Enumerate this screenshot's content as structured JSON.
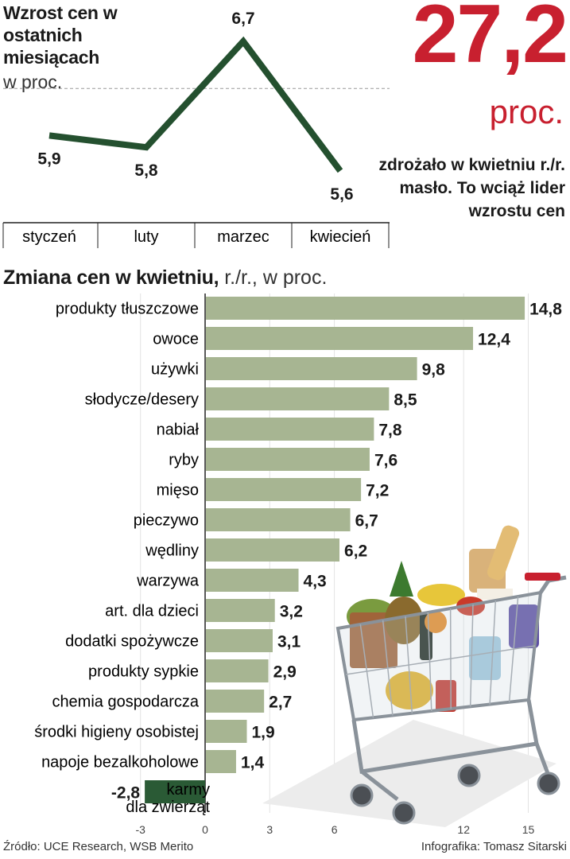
{
  "line_panel": {
    "title": "Wzrost cen w ostatnich miesiącach",
    "unit": "w proc."
  },
  "headline": {
    "number": "27,2",
    "unit": "proc.",
    "text": "zdrożało w kwietniu r./r. masło. To wciąż lider wzrostu cen"
  },
  "bar_panel": {
    "title": "Zmiana cen w kwietniu,",
    "subtitle": "r./r., w proc."
  },
  "footer": {
    "source": "Źródło: UCE Research, WSB Merito",
    "credit": "Infografika: Tomasz Sitarski"
  },
  "colors": {
    "headline_red": "#c8202f",
    "line_green": "#24502f",
    "bar_sage": "#a7b592",
    "bar_negative": "#2a5a35"
  },
  "illustration": "shopping-cart-with-groceries",
  "chart_data": [
    {
      "type": "line",
      "categories": [
        "styczeń",
        "luty",
        "marzec",
        "kwiecień"
      ],
      "series": [
        {
          "values": [
            5.9,
            5.8,
            6.7,
            5.6
          ],
          "labels": [
            "5,9",
            "5,8",
            "6,7",
            "5,6"
          ]
        }
      ],
      "title": "Wzrost cen w ostatnich miesiącach",
      "ylabel": "w proc.",
      "reference_line": 6.3,
      "grid": false
    },
    {
      "type": "bar",
      "orientation": "horizontal",
      "title": "Zmiana cen w kwietniu, r./r., w proc.",
      "categories": [
        "produkty tłuszczowe",
        "owoce",
        "używki",
        "słodycze/desery",
        "nabiał",
        "ryby",
        "mięso",
        "pieczywo",
        "wędliny",
        "warzywa",
        "art. dla dzieci",
        "dodatki spożywcze",
        "produkty sypkie",
        "chemia gospodarcza",
        "środki higieny osobistej",
        "napoje bezalkoholowe",
        "karmy dla zwierząt"
      ],
      "values": [
        14.8,
        12.4,
        9.8,
        8.5,
        7.8,
        7.6,
        7.2,
        6.7,
        6.2,
        4.3,
        3.2,
        3.1,
        2.9,
        2.7,
        1.9,
        1.4,
        -2.8
      ],
      "value_labels": [
        "14,8",
        "12,4",
        "9,8",
        "8,5",
        "7,8",
        "7,6",
        "7,2",
        "6,7",
        "6,2",
        "4,3",
        "3,2",
        "3,1",
        "2,9",
        "2,7",
        "1,9",
        "1,4",
        "-2,8"
      ],
      "negative_label_lines": [
        "karmy",
        "dla zwierząt"
      ],
      "xticks": [
        -3,
        0,
        3,
        6,
        12,
        15
      ],
      "xlim": [
        -3,
        15
      ],
      "grid": true
    }
  ]
}
